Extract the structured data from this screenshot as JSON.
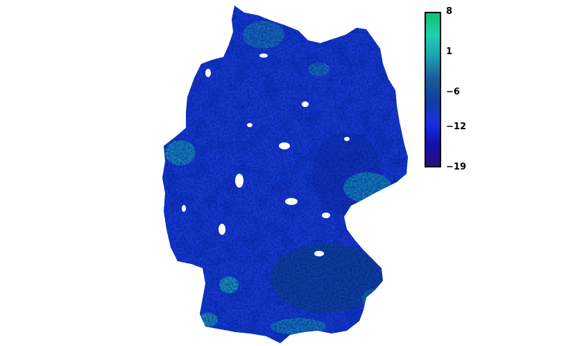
{
  "map": {
    "region": "Germany",
    "palette": [
      "#2b0f7a",
      "#1010b0",
      "#1a2fe0",
      "#0f3fa0",
      "#1a5c9a",
      "#1aa0b0",
      "#20d0b0",
      "#10c070"
    ]
  },
  "legend": {
    "ticks": [
      {
        "label": "8",
        "value": 8
      },
      {
        "label": "1",
        "value": 1
      },
      {
        "label": "−6",
        "value": -6
      },
      {
        "label": "−12",
        "value": -12
      },
      {
        "label": "−19",
        "value": -19
      }
    ],
    "min": -19,
    "max": 8
  }
}
